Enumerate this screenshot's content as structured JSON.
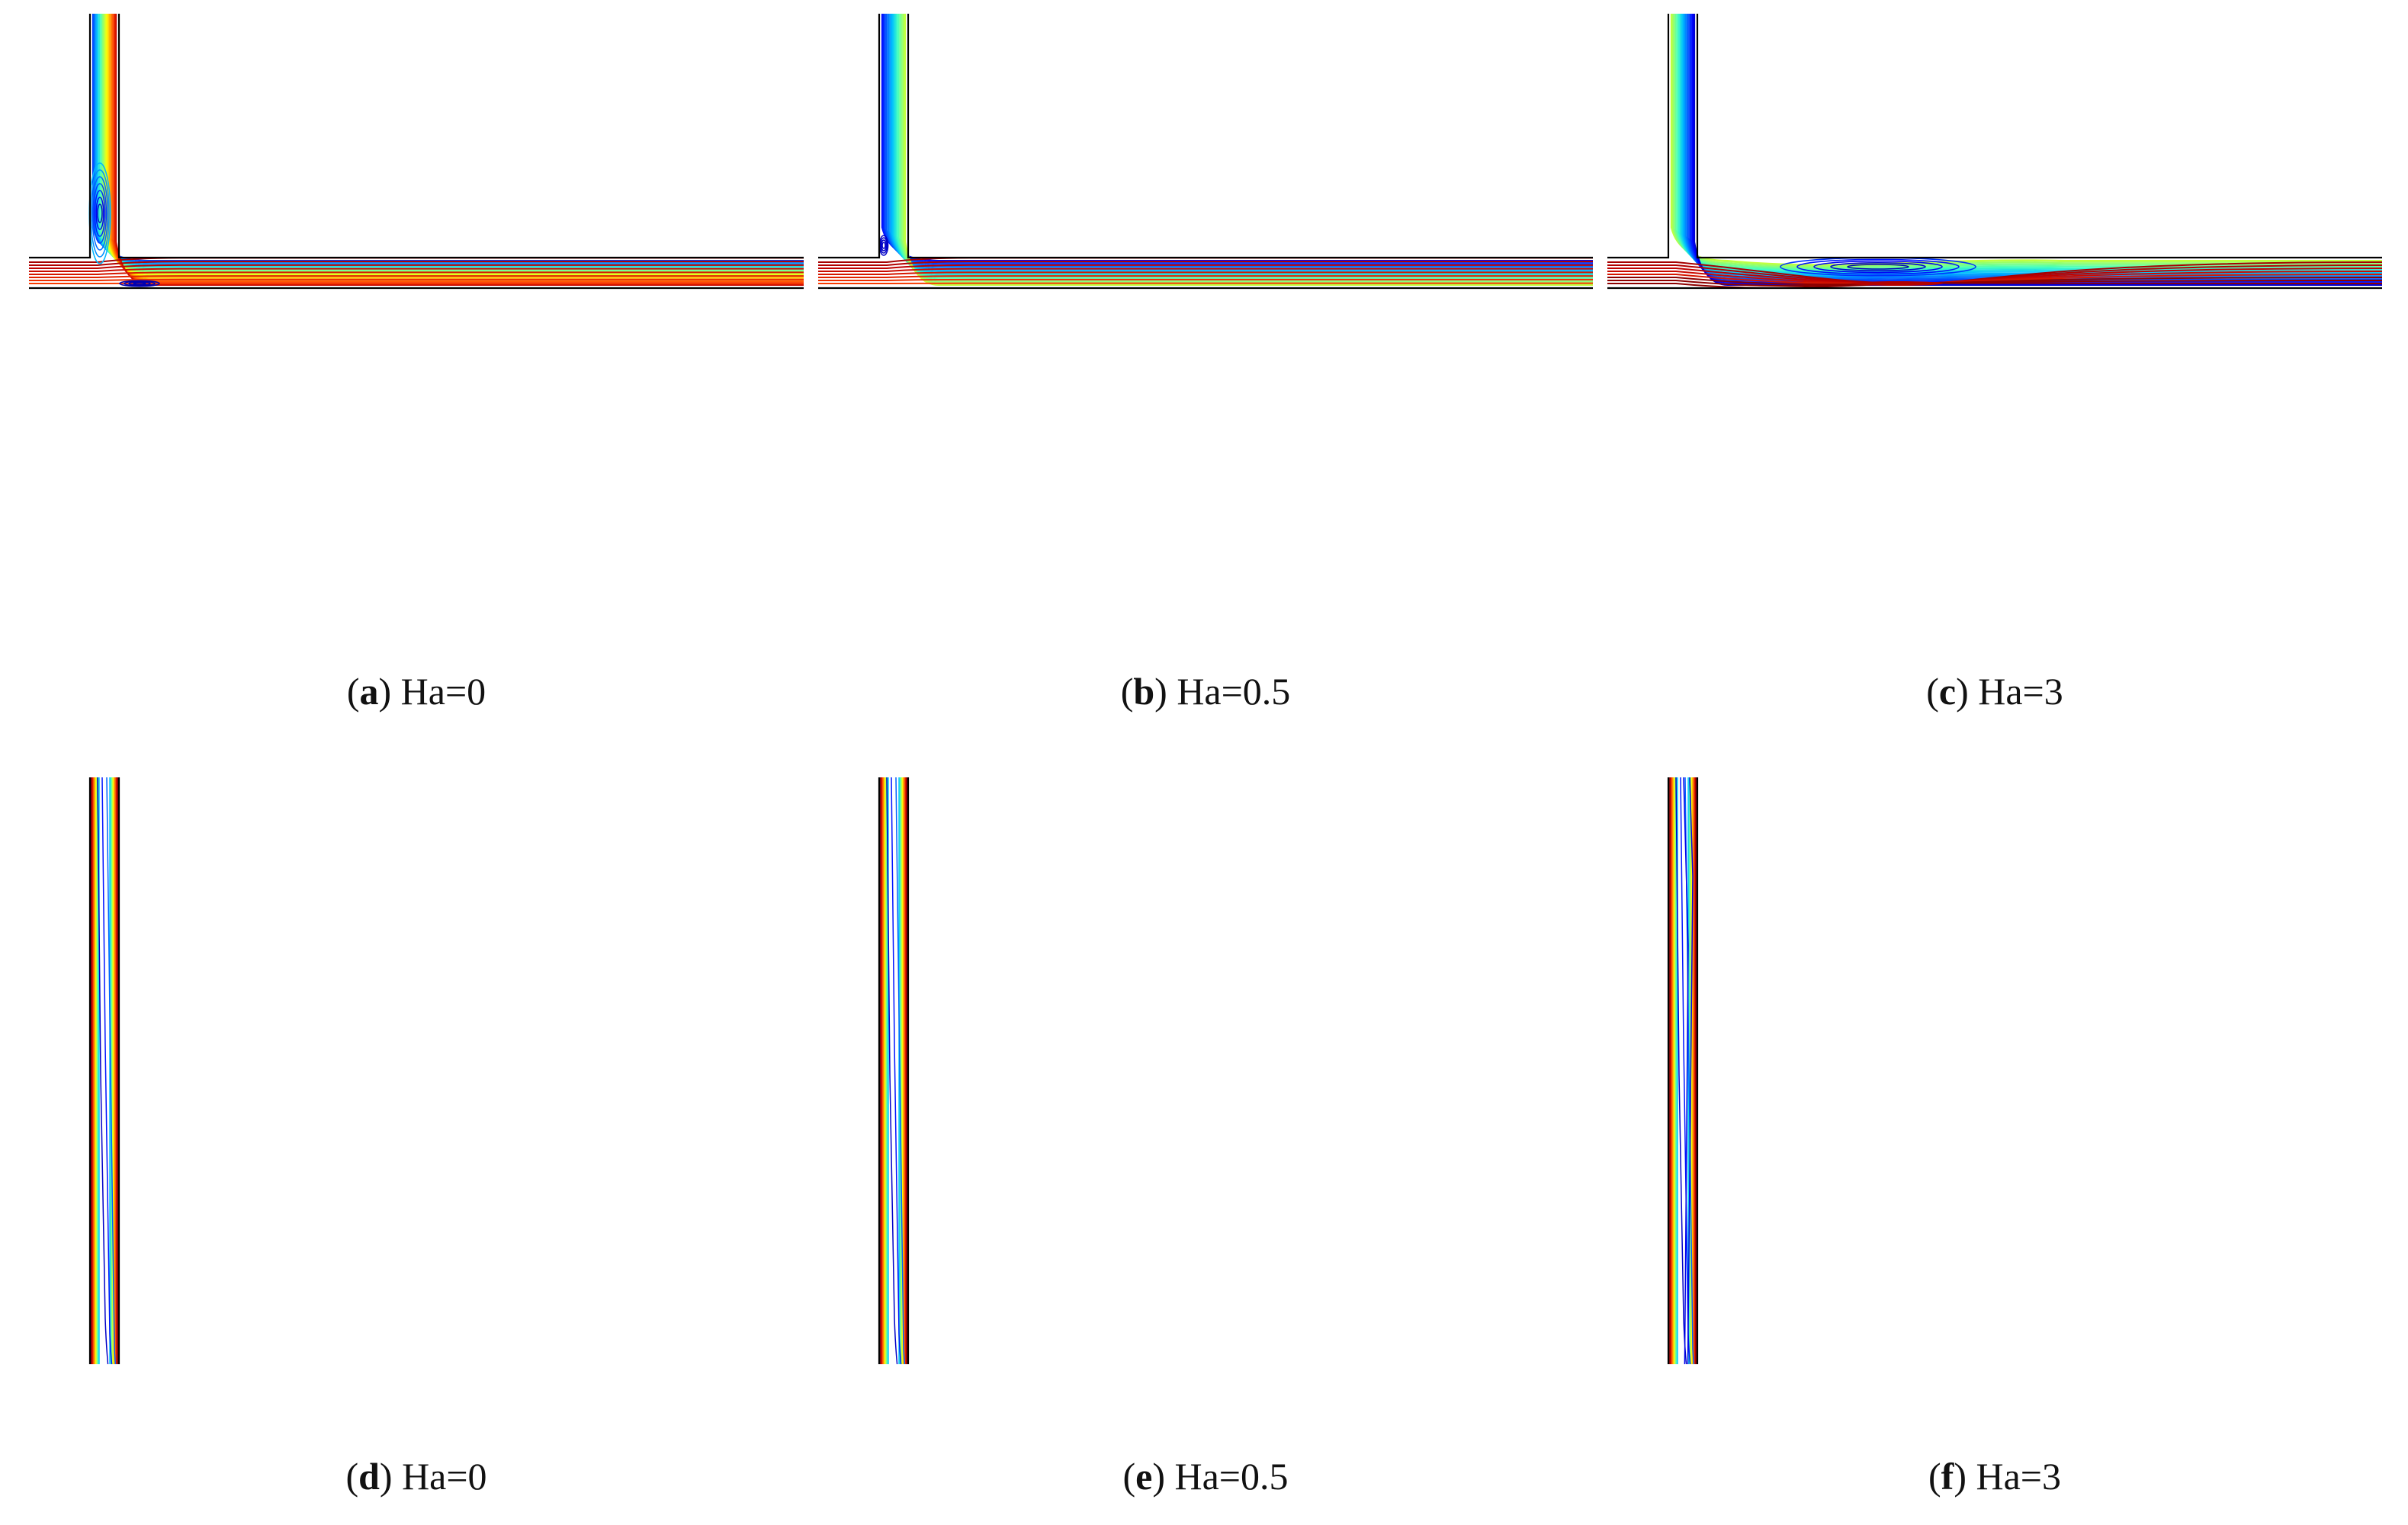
{
  "panels": [
    {
      "id": "a",
      "letter": "a",
      "text": " Ha=0",
      "kind": "stream",
      "ha": 0
    },
    {
      "id": "b",
      "letter": "b",
      "text": " Ha=0.5",
      "kind": "stream",
      "ha": 0.5
    },
    {
      "id": "c",
      "letter": "c",
      "text": " Ha=3",
      "kind": "stream",
      "ha": 3
    },
    {
      "id": "d",
      "letter": "d",
      "text": " Ha=0",
      "kind": "isotherm",
      "ha": 0
    },
    {
      "id": "e",
      "letter": "e",
      "text": " Ha=0.5",
      "kind": "isotherm",
      "ha": 0.5
    },
    {
      "id": "f",
      "letter": "f",
      "text": " Ha=3",
      "kind": "isotherm",
      "ha": 3
    }
  ],
  "colors": {
    "wall": "#000000",
    "jet": [
      "#00008f",
      "#0000ff",
      "#0060ff",
      "#00c0ff",
      "#40ffc0",
      "#a0ff60",
      "#ffff00",
      "#ffa000",
      "#ff4000",
      "#c00000",
      "#800000"
    ]
  }
}
